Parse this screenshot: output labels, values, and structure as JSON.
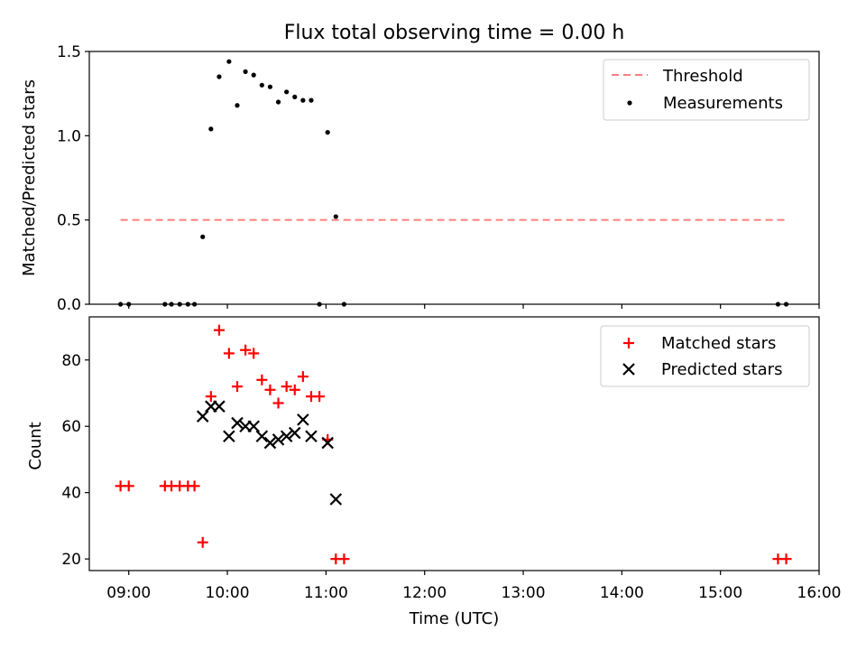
{
  "figure": {
    "title": "Flux total observing time = 0.00 h"
  },
  "chart_data": [
    {
      "type": "scatter",
      "ylabel": "Matched/Predicted stars",
      "xlim": [
        "08:36",
        "16:00"
      ],
      "ylim": [
        0,
        1.5
      ],
      "y_ticks": [
        "0.0",
        "0.5",
        "1.0",
        "1.5"
      ],
      "legend_position": "upper right",
      "threshold": {
        "name": "Threshold",
        "value": 0.5,
        "x_range": [
          "08:55",
          "15:40"
        ],
        "color": "#ff7f7f",
        "style": "dashed"
      },
      "series": [
        {
          "name": "Measurements",
          "color": "#000000",
          "marker": "dot",
          "points": [
            [
              "08:55",
              0
            ],
            [
              "09:00",
              0
            ],
            [
              "09:22",
              0
            ],
            [
              "09:26",
              0
            ],
            [
              "09:31",
              0
            ],
            [
              "09:36",
              0
            ],
            [
              "09:40",
              0
            ],
            [
              "09:45",
              0.4
            ],
            [
              "09:50",
              1.04
            ],
            [
              "09:55",
              1.35
            ],
            [
              "10:01",
              1.44
            ],
            [
              "10:06",
              1.18
            ],
            [
              "10:11",
              1.38
            ],
            [
              "10:16",
              1.36
            ],
            [
              "10:21",
              1.3
            ],
            [
              "10:26",
              1.29
            ],
            [
              "10:31",
              1.2
            ],
            [
              "10:36",
              1.26
            ],
            [
              "10:41",
              1.23
            ],
            [
              "10:46",
              1.21
            ],
            [
              "10:51",
              1.21
            ],
            [
              "10:56",
              0
            ],
            [
              "11:01",
              1.02
            ],
            [
              "11:06",
              0.52
            ],
            [
              "11:11",
              0
            ],
            [
              "15:35",
              0
            ],
            [
              "15:40",
              0
            ]
          ]
        }
      ]
    },
    {
      "type": "scatter",
      "xlabel": "Time (UTC)",
      "ylabel": "Count",
      "xlim": [
        "08:36",
        "16:00"
      ],
      "ylim": [
        16.5,
        93
      ],
      "y_ticks": [
        "20",
        "40",
        "60",
        "80"
      ],
      "x_ticks": [
        "09:00",
        "10:00",
        "11:00",
        "12:00",
        "13:00",
        "14:00",
        "15:00",
        "16:00"
      ],
      "legend_position": "upper right",
      "series": [
        {
          "name": "Matched stars",
          "color": "#ff0000",
          "marker": "plus",
          "points": [
            [
              "08:55",
              42
            ],
            [
              "09:00",
              42
            ],
            [
              "09:22",
              42
            ],
            [
              "09:26",
              42
            ],
            [
              "09:31",
              42
            ],
            [
              "09:36",
              42
            ],
            [
              "09:40",
              42
            ],
            [
              "09:45",
              25
            ],
            [
              "09:50",
              69
            ],
            [
              "09:55",
              89
            ],
            [
              "10:01",
              82
            ],
            [
              "10:06",
              72
            ],
            [
              "10:11",
              83
            ],
            [
              "10:16",
              82
            ],
            [
              "10:21",
              74
            ],
            [
              "10:26",
              71
            ],
            [
              "10:31",
              67
            ],
            [
              "10:36",
              72
            ],
            [
              "10:41",
              71
            ],
            [
              "10:46",
              75
            ],
            [
              "10:51",
              69
            ],
            [
              "10:56",
              69
            ],
            [
              "11:01",
              56
            ],
            [
              "11:06",
              20
            ],
            [
              "11:11",
              20
            ],
            [
              "15:35",
              20
            ],
            [
              "15:40",
              20
            ]
          ]
        },
        {
          "name": "Predicted stars",
          "color": "#000000",
          "marker": "x",
          "points": [
            [
              "09:45",
              63
            ],
            [
              "09:50",
              66
            ],
            [
              "09:55",
              66
            ],
            [
              "10:01",
              57
            ],
            [
              "10:06",
              61
            ],
            [
              "10:11",
              60
            ],
            [
              "10:16",
              60
            ],
            [
              "10:21",
              57
            ],
            [
              "10:26",
              55
            ],
            [
              "10:31",
              56
            ],
            [
              "10:36",
              57
            ],
            [
              "10:41",
              58
            ],
            [
              "10:46",
              62
            ],
            [
              "10:51",
              57
            ],
            [
              "11:01",
              55
            ],
            [
              "11:06",
              38
            ]
          ]
        }
      ]
    }
  ]
}
